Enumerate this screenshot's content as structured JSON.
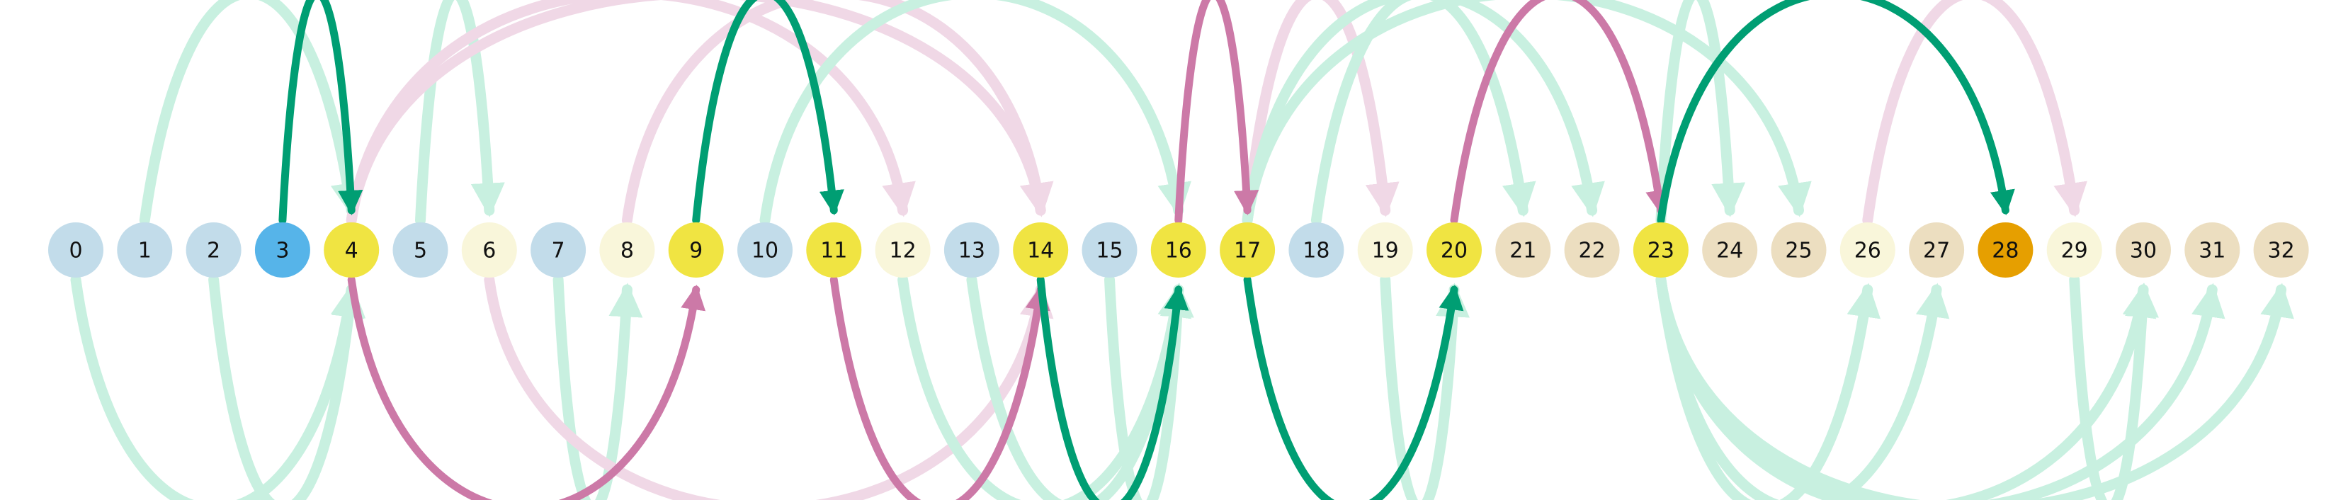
{
  "colors": {
    "node_pale_blue": "#c2dcea",
    "node_blue": "#56b4e9",
    "node_yellow": "#f0e442",
    "node_cream": "#f9f6da",
    "node_tan": "#ecdec0",
    "node_orange": "#e69f00",
    "arc_green": "#009e73",
    "arc_green_faint": "#c8f0e0",
    "arc_pink": "#cc79a7",
    "arc_pink_faint": "#f0d8e6"
  },
  "nodes": [
    {
      "label": "0",
      "fill": "node_pale_blue"
    },
    {
      "label": "1",
      "fill": "node_pale_blue"
    },
    {
      "label": "2",
      "fill": "node_pale_blue"
    },
    {
      "label": "3",
      "fill": "node_blue"
    },
    {
      "label": "4",
      "fill": "node_yellow"
    },
    {
      "label": "5",
      "fill": "node_pale_blue"
    },
    {
      "label": "6",
      "fill": "node_cream"
    },
    {
      "label": "7",
      "fill": "node_pale_blue"
    },
    {
      "label": "8",
      "fill": "node_cream"
    },
    {
      "label": "9",
      "fill": "node_yellow"
    },
    {
      "label": "10",
      "fill": "node_pale_blue"
    },
    {
      "label": "11",
      "fill": "node_yellow"
    },
    {
      "label": "12",
      "fill": "node_cream"
    },
    {
      "label": "13",
      "fill": "node_pale_blue"
    },
    {
      "label": "14",
      "fill": "node_yellow"
    },
    {
      "label": "15",
      "fill": "node_pale_blue"
    },
    {
      "label": "16",
      "fill": "node_yellow"
    },
    {
      "label": "17",
      "fill": "node_yellow"
    },
    {
      "label": "18",
      "fill": "node_pale_blue"
    },
    {
      "label": "19",
      "fill": "node_cream"
    },
    {
      "label": "20",
      "fill": "node_yellow"
    },
    {
      "label": "21",
      "fill": "node_tan"
    },
    {
      "label": "22",
      "fill": "node_tan"
    },
    {
      "label": "23",
      "fill": "node_yellow"
    },
    {
      "label": "24",
      "fill": "node_tan"
    },
    {
      "label": "25",
      "fill": "node_tan"
    },
    {
      "label": "26",
      "fill": "node_cream"
    },
    {
      "label": "27",
      "fill": "node_tan"
    },
    {
      "label": "28",
      "fill": "node_orange"
    },
    {
      "label": "29",
      "fill": "node_cream"
    },
    {
      "label": "30",
      "fill": "node_tan"
    },
    {
      "label": "31",
      "fill": "node_tan"
    },
    {
      "label": "32",
      "fill": "node_tan"
    }
  ],
  "edges": [
    {
      "from": 1,
      "to": 4,
      "side": "above",
      "style": "green_faint"
    },
    {
      "from": 5,
      "to": 6,
      "side": "above",
      "style": "green_faint"
    },
    {
      "from": 4,
      "to": 12,
      "side": "above",
      "style": "pink_faint"
    },
    {
      "from": 4,
      "to": 14,
      "side": "above",
      "style": "pink_faint"
    },
    {
      "from": 8,
      "to": 14,
      "side": "above",
      "style": "pink_faint"
    },
    {
      "from": 10,
      "to": 16,
      "side": "above",
      "style": "green_faint"
    },
    {
      "from": 17,
      "to": 19,
      "side": "above",
      "style": "pink_faint"
    },
    {
      "from": 17,
      "to": 22,
      "side": "above",
      "style": "green_faint"
    },
    {
      "from": 17,
      "to": 25,
      "side": "above",
      "style": "green_faint"
    },
    {
      "from": 18,
      "to": 21,
      "side": "above",
      "style": "green_faint"
    },
    {
      "from": 23,
      "to": 24,
      "side": "above",
      "style": "green_faint"
    },
    {
      "from": 26,
      "to": 29,
      "side": "above",
      "style": "pink_faint"
    },
    {
      "from": 0,
      "to": 4,
      "side": "below",
      "style": "green_faint"
    },
    {
      "from": 2,
      "to": 4,
      "side": "below",
      "style": "green_faint"
    },
    {
      "from": 7,
      "to": 8,
      "side": "below",
      "style": "green_faint"
    },
    {
      "from": 6,
      "to": 14,
      "side": "below",
      "style": "pink_faint"
    },
    {
      "from": 12,
      "to": 16,
      "side": "below",
      "style": "green_faint"
    },
    {
      "from": 13,
      "to": 16,
      "side": "below",
      "style": "green_faint"
    },
    {
      "from": 15,
      "to": 16,
      "side": "below",
      "style": "green_faint"
    },
    {
      "from": 19,
      "to": 20,
      "side": "below",
      "style": "green_faint"
    },
    {
      "from": 23,
      "to": 26,
      "side": "below",
      "style": "green_faint"
    },
    {
      "from": 23,
      "to": 27,
      "side": "below",
      "style": "green_faint"
    },
    {
      "from": 23,
      "to": 30,
      "side": "below",
      "style": "green_faint"
    },
    {
      "from": 23,
      "to": 31,
      "side": "below",
      "style": "green_faint"
    },
    {
      "from": 23,
      "to": 32,
      "side": "below",
      "style": "green_faint"
    },
    {
      "from": 29,
      "to": 30,
      "side": "below",
      "style": "green_faint"
    },
    {
      "from": 3,
      "to": 4,
      "side": "above",
      "style": "green"
    },
    {
      "from": 9,
      "to": 11,
      "side": "above",
      "style": "green"
    },
    {
      "from": 16,
      "to": 17,
      "side": "above",
      "style": "pink"
    },
    {
      "from": 20,
      "to": 23,
      "side": "above",
      "style": "pink"
    },
    {
      "from": 23,
      "to": 28,
      "side": "above",
      "style": "green"
    },
    {
      "from": 4,
      "to": 9,
      "side": "below",
      "style": "pink"
    },
    {
      "from": 11,
      "to": 14,
      "side": "below",
      "style": "pink"
    },
    {
      "from": 14,
      "to": 16,
      "side": "below",
      "style": "green"
    },
    {
      "from": 17,
      "to": 20,
      "side": "below",
      "style": "green"
    }
  ]
}
